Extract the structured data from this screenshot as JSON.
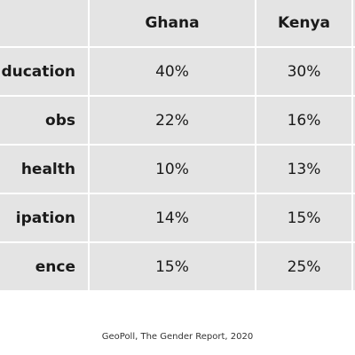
{
  "chart_data": {
    "type": "table",
    "columns": [
      "",
      "Ghana",
      "Kenya"
    ],
    "rows": [
      {
        "label": "ducation",
        "values": [
          "40%",
          "30%"
        ]
      },
      {
        "label": "obs",
        "values": [
          "22%",
          "16%"
        ]
      },
      {
        "label": "health",
        "values": [
          "10%",
          "13%"
        ]
      },
      {
        "label": "ipation",
        "values": [
          "14%",
          "15%"
        ]
      },
      {
        "label": "ence",
        "values": [
          "15%",
          "25%"
        ]
      }
    ],
    "source": "GeoPoll, The Gender Report, 2020",
    "colors": {
      "cell_background": "#e4e4e4",
      "grid_lines": "#ffffff",
      "text": "#1a1a1a"
    }
  }
}
